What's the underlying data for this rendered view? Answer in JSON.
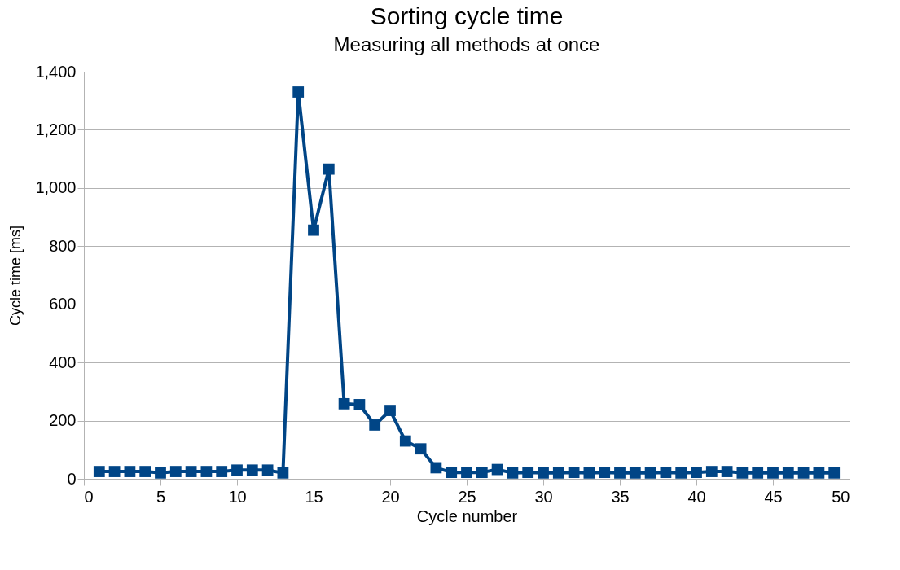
{
  "chart_data": {
    "type": "line",
    "title": "Sorting cycle time",
    "subtitle": "Measuring all methods at once",
    "xlabel": "Cycle number",
    "ylabel": "Cycle time [ms]",
    "x": [
      1,
      2,
      3,
      4,
      5,
      6,
      7,
      8,
      9,
      10,
      11,
      12,
      13,
      14,
      15,
      16,
      17,
      18,
      19,
      20,
      21,
      22,
      23,
      24,
      25,
      26,
      27,
      28,
      29,
      30,
      31,
      32,
      33,
      34,
      35,
      36,
      37,
      38,
      39,
      40,
      41,
      42,
      43,
      44,
      45,
      46,
      47,
      48,
      49
    ],
    "series": [
      {
        "color": "#004586",
        "values": [
          25,
          25,
          25,
          25,
          20,
          25,
          25,
          25,
          25,
          30,
          30,
          30,
          20,
          1330,
          855,
          1065,
          258,
          255,
          185,
          235,
          130,
          103,
          38,
          22,
          22,
          22,
          32,
          20,
          22,
          20,
          20,
          22,
          20,
          22,
          20,
          20,
          20,
          22,
          20,
          22,
          25,
          25,
          20,
          20,
          20,
          20,
          20,
          20,
          20
        ]
      }
    ],
    "xlim": [
      0,
      50
    ],
    "xticks": [
      0,
      5,
      10,
      15,
      20,
      25,
      30,
      35,
      40,
      45,
      50
    ],
    "ylim": [
      0,
      1400
    ],
    "yticks": [
      {
        "value": 0,
        "label": "0"
      },
      {
        "value": 200,
        "label": "200"
      },
      {
        "value": 400,
        "label": "400"
      },
      {
        "value": 600,
        "label": "600"
      },
      {
        "value": 800,
        "label": "800"
      },
      {
        "value": 1000,
        "label": "1,000"
      },
      {
        "value": 1200,
        "label": "1,200"
      },
      {
        "value": 1400,
        "label": "1,400"
      }
    ],
    "grid": "y",
    "marker": "square",
    "line_style": "solid",
    "legend": false
  }
}
